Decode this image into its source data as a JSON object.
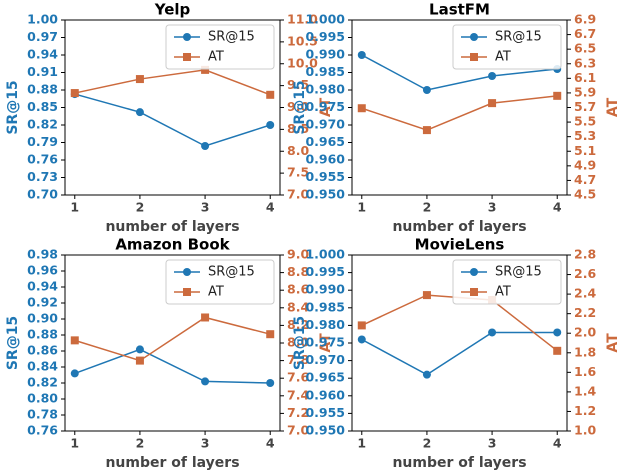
{
  "chart_data": [
    {
      "type": "line",
      "title": "Yelp",
      "xlabel": "number of layers",
      "ylabel": "SR@15",
      "y2label": "AT",
      "x": [
        1,
        2,
        3,
        4
      ],
      "xlim": [
        0.85,
        4.15
      ],
      "xticks": [
        1,
        2,
        3,
        4
      ],
      "ylim": [
        0.7,
        1.0
      ],
      "yticks": [
        {
          "value": 0.7,
          "label": "0.70"
        },
        0.73,
        0.76,
        0.79,
        0.82,
        0.85,
        0.88,
        0.91,
        0.94,
        0.97,
        {
          "value": 1.0,
          "label": "1.00"
        }
      ],
      "y2lim": [
        7.0,
        11.0
      ],
      "y2ticks": [
        {
          "value": 7,
          "label": "7.0"
        },
        7.5,
        {
          "value": 8,
          "label": "8.0"
        },
        8.5,
        {
          "value": 9,
          "label": "9.0"
        },
        9.5,
        {
          "value": 10,
          "label": "10.0"
        },
        10.5,
        {
          "value": 11,
          "label": "11.0"
        }
      ],
      "legend": "upper right",
      "series": [
        {
          "name": "SR@15",
          "color": "#1f77b4",
          "marker": "circle",
          "values": [
            0.873,
            0.842,
            0.784,
            0.82
          ]
        },
        {
          "name": "AT",
          "color": "#cc6a3d",
          "marker": "square",
          "axis": "y2",
          "values": [
            9.33,
            9.65,
            9.86,
            9.29
          ]
        }
      ]
    },
    {
      "type": "line",
      "title": "LastFM",
      "xlabel": "number of layers",
      "ylabel": "SR@15",
      "y2label": "AT",
      "x": [
        1,
        2,
        3,
        4
      ],
      "xlim": [
        0.85,
        4.15
      ],
      "xticks": [
        1,
        2,
        3,
        4
      ],
      "ylim": [
        0.95,
        1.0
      ],
      "yticks": [
        {
          "value": 0.95,
          "label": "0.950"
        },
        0.955,
        {
          "value": 0.96,
          "label": "0.960"
        },
        0.965,
        {
          "value": 0.97,
          "label": "0.970"
        },
        0.975,
        {
          "value": 0.98,
          "label": "0.980"
        },
        0.985,
        {
          "value": 0.99,
          "label": "0.990"
        },
        0.995,
        {
          "value": 1.0,
          "label": "1.000"
        }
      ],
      "y2lim": [
        4.5,
        6.9
      ],
      "y2ticks": [
        4.5,
        4.7,
        4.9,
        5.1,
        5.3,
        5.5,
        5.7,
        5.9,
        6.1,
        6.3,
        6.5,
        6.7,
        6.9
      ],
      "legend": "upper right",
      "series": [
        {
          "name": "SR@15",
          "color": "#1f77b4",
          "marker": "circle",
          "values": [
            0.99,
            0.98,
            0.984,
            0.986
          ]
        },
        {
          "name": "AT",
          "color": "#cc6a3d",
          "marker": "square",
          "axis": "y2",
          "values": [
            5.69,
            5.39,
            5.76,
            5.86
          ]
        }
      ]
    },
    {
      "type": "line",
      "title": "Amazon Book",
      "xlabel": "number of layers",
      "ylabel": "SR@15",
      "y2label": "AT",
      "x": [
        1,
        2,
        3,
        4
      ],
      "xlim": [
        0.85,
        4.15
      ],
      "xticks": [
        1,
        2,
        3,
        4
      ],
      "ylim": [
        0.76,
        0.98
      ],
      "yticks": [
        0.76,
        0.78,
        {
          "value": 0.8,
          "label": "0.80"
        },
        0.82,
        0.84,
        0.86,
        0.88,
        {
          "value": 0.9,
          "label": "0.90"
        },
        0.92,
        0.94,
        0.96,
        0.98
      ],
      "y2lim": [
        7.0,
        9.0
      ],
      "y2ticks": [
        {
          "value": 7,
          "label": "7.0"
        },
        7.2,
        7.4,
        7.6,
        7.8,
        {
          "value": 8,
          "label": "8.0"
        },
        8.2,
        8.4,
        8.6,
        8.8,
        {
          "value": 9,
          "label": "9.0"
        }
      ],
      "legend": "upper right",
      "series": [
        {
          "name": "SR@15",
          "color": "#1f77b4",
          "marker": "circle",
          "values": [
            0.832,
            0.862,
            0.822,
            0.82
          ]
        },
        {
          "name": "AT",
          "color": "#cc6a3d",
          "marker": "square",
          "axis": "y2",
          "values": [
            8.03,
            7.8,
            8.29,
            8.1
          ]
        }
      ]
    },
    {
      "type": "line",
      "title": "MovieLens",
      "xlabel": "number of layers",
      "ylabel": "SR@15",
      "y2label": "AT",
      "x": [
        1,
        2,
        3,
        4
      ],
      "xlim": [
        0.85,
        4.15
      ],
      "xticks": [
        1,
        2,
        3,
        4
      ],
      "ylim": [
        0.95,
        1.0
      ],
      "yticks": [
        {
          "value": 0.95,
          "label": "0.950"
        },
        0.955,
        {
          "value": 0.96,
          "label": "0.960"
        },
        0.965,
        {
          "value": 0.97,
          "label": "0.970"
        },
        0.975,
        {
          "value": 0.98,
          "label": "0.980"
        },
        0.985,
        {
          "value": 0.99,
          "label": "0.990"
        },
        0.995,
        {
          "value": 1.0,
          "label": "1.000"
        }
      ],
      "y2lim": [
        1.0,
        2.8
      ],
      "y2ticks": [
        {
          "value": 1,
          "label": "1.0"
        },
        1.2,
        1.4,
        1.6,
        1.8,
        {
          "value": 2,
          "label": "2.0"
        },
        2.2,
        2.4,
        2.6,
        2.8
      ],
      "legend": "upper right",
      "series": [
        {
          "name": "SR@15",
          "color": "#1f77b4",
          "marker": "circle",
          "values": [
            0.976,
            0.966,
            0.978,
            0.978
          ]
        },
        {
          "name": "AT",
          "color": "#cc6a3d",
          "marker": "square",
          "axis": "y2",
          "values": [
            2.08,
            2.39,
            2.34,
            1.82
          ]
        }
      ]
    }
  ]
}
